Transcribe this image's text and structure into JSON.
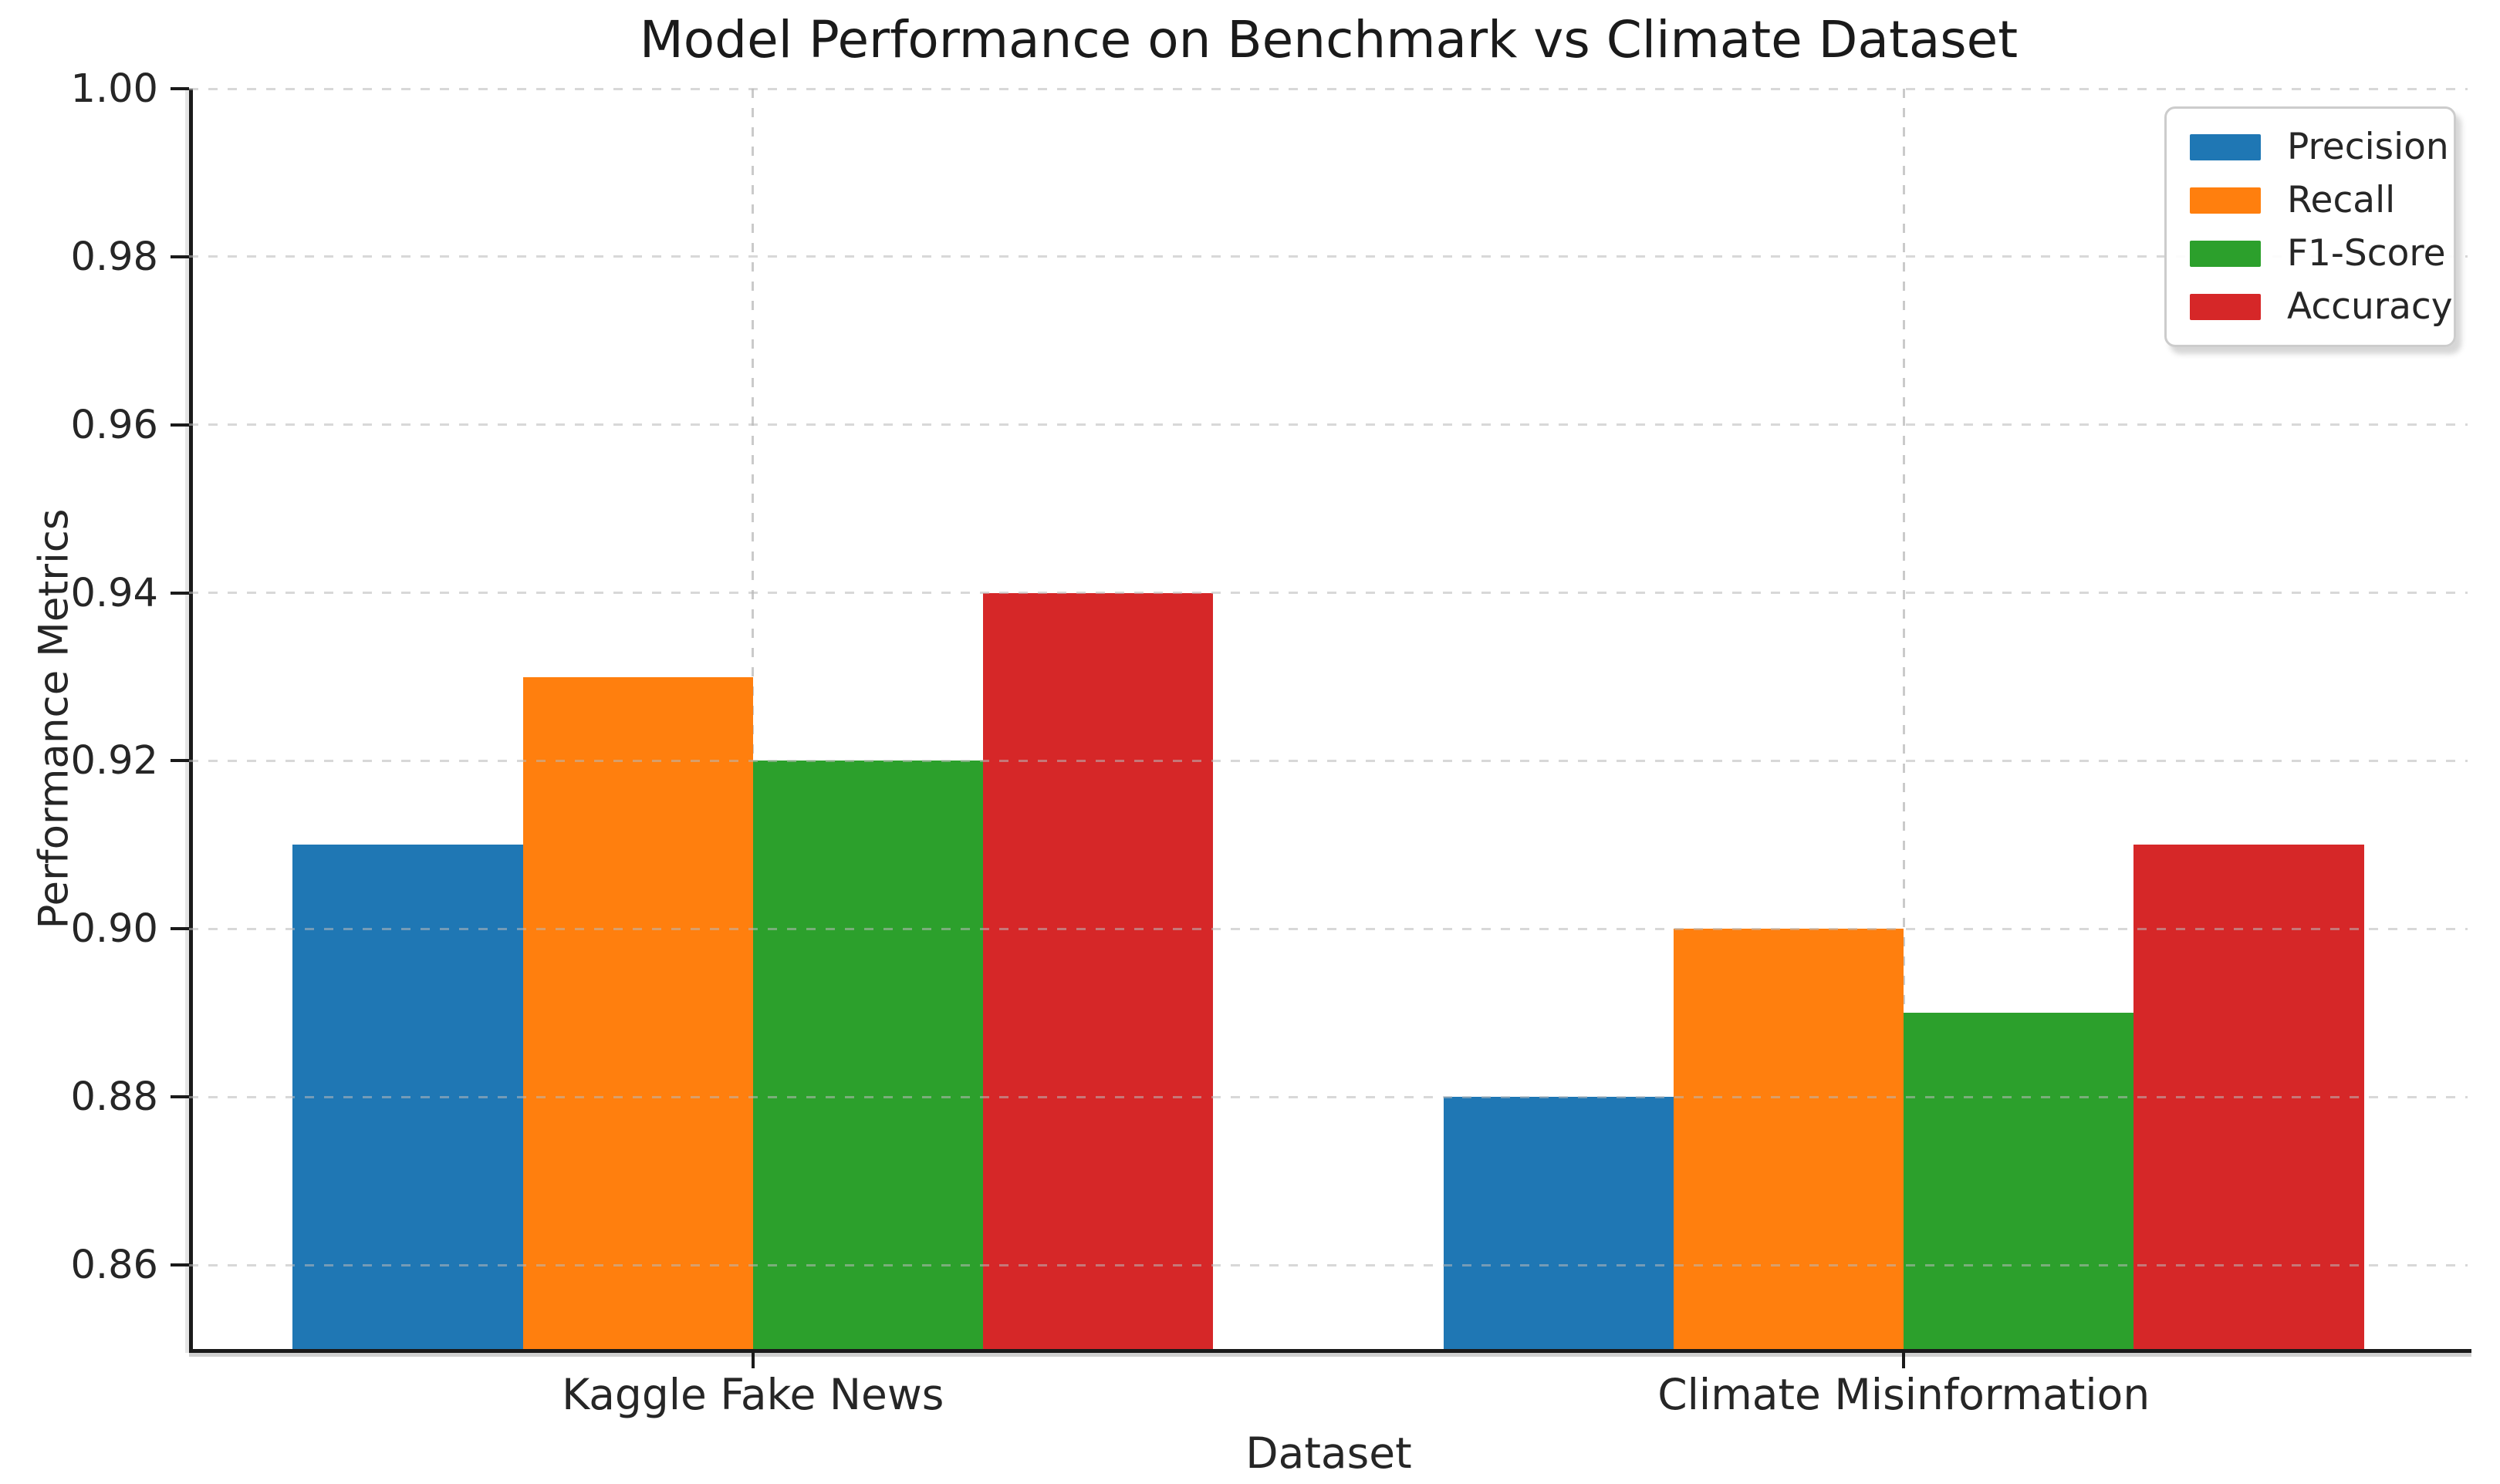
{
  "title": "Model Performance on Benchmark vs Climate Dataset",
  "chart_data": {
    "type": "bar",
    "title": "Model Performance on Benchmark vs Climate Dataset",
    "xlabel": "Dataset",
    "ylabel": "Performance Metrics",
    "categories": [
      "Kaggle Fake News",
      "Climate Misinformation"
    ],
    "series": [
      {
        "name": "Precision",
        "color": "#1f77b4",
        "values": [
          0.91,
          0.88
        ]
      },
      {
        "name": "Recall",
        "color": "#ff7f0e",
        "values": [
          0.93,
          0.9
        ]
      },
      {
        "name": "F1-Score",
        "color": "#2ca02c",
        "values": [
          0.92,
          0.89
        ]
      },
      {
        "name": "Accuracy",
        "color": "#d62728",
        "values": [
          0.94,
          0.91
        ]
      }
    ],
    "ylim": [
      0.85,
      1.0
    ],
    "yticks": [
      0.86,
      0.88,
      0.9,
      0.92,
      0.94,
      0.96,
      0.98,
      1.0
    ],
    "ytick_labels": [
      "0.86",
      "0.88",
      "0.90",
      "0.92",
      "0.94",
      "0.96",
      "0.98",
      "1.00"
    ],
    "xlim": [
      -0.49,
      1.49
    ],
    "group_centers": [
      0,
      1
    ],
    "bar_offsets": [
      -0.3,
      -0.1,
      0.1,
      0.3
    ],
    "bar_width": 0.2,
    "grid": true,
    "grid_style": "dashed",
    "legend_position": "upper right"
  }
}
